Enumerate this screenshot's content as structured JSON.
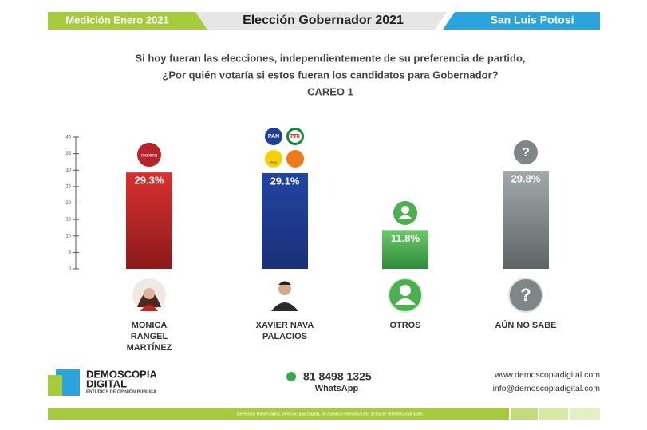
{
  "header": {
    "left": "Medición Enero 2021",
    "center": "Elección Gobernador 2021",
    "right": "San Luis Potosí"
  },
  "question": {
    "line1": "Si hoy fueran las elecciones, independientemente de su preferencia de partido,",
    "line2": "¿Por quién votaría si estos fueran los candidatos para Gobernador?",
    "subtitle": "CAREO 1"
  },
  "logos": {
    "morena": "morena",
    "pan": "PAN",
    "pri": "PRI",
    "prd": "PRD",
    "unknown": "?"
  },
  "chart_data": {
    "type": "bar",
    "categories": [
      "MONICA RANGEL MARTÍNEZ",
      "XAVIER NAVA PALACIOS",
      "OTROS",
      "AÚN NO SABE"
    ],
    "values": [
      29.3,
      29.1,
      11.8,
      29.8
    ],
    "value_labels": [
      "29.3%",
      "29.1%",
      "11.8%",
      "29.8%"
    ],
    "colors": [
      "#c8282b",
      "#1d3a92",
      "#4caf50",
      "#8c9394"
    ],
    "ylim": [
      0,
      40
    ],
    "yticks": [
      0,
      5,
      10,
      15,
      20,
      25,
      30,
      35,
      40
    ]
  },
  "footer": {
    "brand1": "DEMOSCOPIA",
    "brand2": "DIGITAL",
    "brand3": "ESTUDIOS DE OPINIÓN PÚBLICA",
    "phone": "81 8498 1325",
    "whatsapp": "WhatsApp",
    "web": "www.demoscopiadigital.com",
    "email": "info@demoscopiadigital.com",
    "rights": "Derechos Reservados Demoscopia Digital, se autoriza reproducción al hacer referencia al autor."
  }
}
